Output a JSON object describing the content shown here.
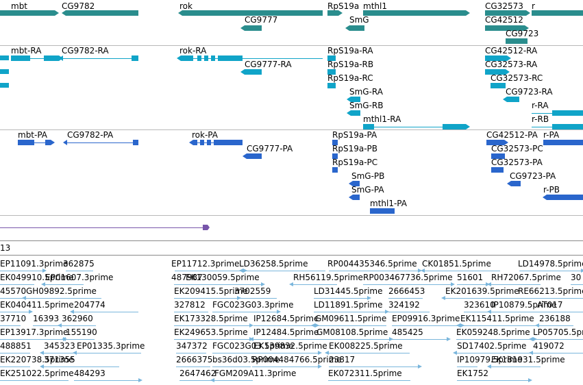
{
  "colors": {
    "gene": "#2a8d8d",
    "transcript": "#10a4c8",
    "polypeptide": "#2a66cc",
    "purple": "#7755aa",
    "est": "#7ab6dc",
    "separator": "#b8b8b8"
  },
  "tracks": {
    "genes": {
      "features": [
        {
          "label": "mbt"
        },
        {
          "label": "CG9782"
        },
        {
          "label": "rok"
        },
        {
          "label": "CG9777"
        },
        {
          "label": "RpS19a"
        },
        {
          "label": "mthl1"
        },
        {
          "label": "SmG"
        },
        {
          "label": "CG32573"
        },
        {
          "label": "r"
        },
        {
          "label": "CG42512"
        },
        {
          "label": "CG9723"
        }
      ]
    },
    "transcripts": {
      "features": [
        {
          "label": "mbt-RA"
        },
        {
          "label": "CG9782-RA"
        },
        {
          "label": "rok-RA"
        },
        {
          "label": "CG9777-RA"
        },
        {
          "label": "RpS19a-RA"
        },
        {
          "label": "RpS19a-RB"
        },
        {
          "label": "RpS19a-RC"
        },
        {
          "label": "SmG-RA"
        },
        {
          "label": "SmG-RB"
        },
        {
          "label": "mthl1-RA"
        },
        {
          "label": "CG42512-RA"
        },
        {
          "label": "CG32573-RA"
        },
        {
          "label": "CG32573-RC"
        },
        {
          "label": "CG9723-RA"
        },
        {
          "label": "r-RA"
        },
        {
          "label": "r-RB"
        }
      ]
    },
    "polypeptides": {
      "features": [
        {
          "label": "mbt-PA"
        },
        {
          "label": "CG9782-PA"
        },
        {
          "label": "rok-PA"
        },
        {
          "label": "CG9777-PA"
        },
        {
          "label": "RpS19a-PA"
        },
        {
          "label": "RpS19a-PB"
        },
        {
          "label": "RpS19a-PC"
        },
        {
          "label": "SmG-PB"
        },
        {
          "label": "SmG-PA"
        },
        {
          "label": "mthl1-PA"
        },
        {
          "label": "CG42512-PA"
        },
        {
          "label": "r-PA"
        },
        {
          "label": "CG32573-PC"
        },
        {
          "label": "CG32573-PA"
        },
        {
          "label": "CG9723-PA"
        },
        {
          "label": "r-PB"
        }
      ]
    },
    "est_track": {
      "title": "13",
      "features": [
        {
          "label": "EP11091.3prime"
        },
        {
          "label": "362875"
        },
        {
          "label": "EP11712.3prime"
        },
        {
          "label": "LD36258.5prime"
        },
        {
          "label": "RP004435346.5prime"
        },
        {
          "label": "CK01851.5prime"
        },
        {
          "label": "LD14978.5prime"
        },
        {
          "label": "EK049910.5prime"
        },
        {
          "label": "EP01607.3prime"
        },
        {
          "label": "487987"
        },
        {
          "label": "EK130059.5prime"
        },
        {
          "label": "RH56119.5prime"
        },
        {
          "label": "RP003467736.5prime"
        },
        {
          "label": "51601"
        },
        {
          "label": "RH72067.5prime"
        },
        {
          "label": "30"
        },
        {
          "label": "45570"
        },
        {
          "label": "GH09892.5prime"
        },
        {
          "label": "EK209415.5prime"
        },
        {
          "label": "3702559"
        },
        {
          "label": "LD31445.5prime"
        },
        {
          "label": "2666453"
        },
        {
          "label": "EK201639.5prime"
        },
        {
          "label": "RE66213.5prime"
        },
        {
          "label": "EK040411.5prime"
        },
        {
          "label": "204774"
        },
        {
          "label": "327812"
        },
        {
          "label": "FGC023G03.3prime"
        },
        {
          "label": "LD11891.5prime"
        },
        {
          "label": "324192"
        },
        {
          "label": "323610"
        },
        {
          "label": "IP10879.5prime"
        },
        {
          "label": "AT017"
        },
        {
          "label": "37710"
        },
        {
          "label": "16393"
        },
        {
          "label": "362960"
        },
        {
          "label": "EK173328.5prime"
        },
        {
          "label": "IP12684.5prime"
        },
        {
          "label": "GM09611.5prime"
        },
        {
          "label": "EP09916.3prime"
        },
        {
          "label": "EK115411.5prime"
        },
        {
          "label": "236188"
        },
        {
          "label": "EP13917.3prime"
        },
        {
          "label": "155190"
        },
        {
          "label": "EK249653.5prime"
        },
        {
          "label": "IP12484.5prime"
        },
        {
          "label": "GM08108.5prime"
        },
        {
          "label": "485425"
        },
        {
          "label": "EK059248.5prime"
        },
        {
          "label": "LP05705.5prime"
        },
        {
          "label": "488851"
        },
        {
          "label": "345323"
        },
        {
          "label": "EP01335.3prime"
        },
        {
          "label": "347372"
        },
        {
          "label": "FGC023G03.5prime"
        },
        {
          "label": "EK139832.5prime"
        },
        {
          "label": "EK008225.5prime"
        },
        {
          "label": "SD17402.5prime"
        },
        {
          "label": "419072"
        },
        {
          "label": "EK220738.5prime"
        },
        {
          "label": "371355"
        },
        {
          "label": "2666375"
        },
        {
          "label": "bs36d03.5prime"
        },
        {
          "label": "RP004484766.5prime"
        },
        {
          "label": "23817"
        },
        {
          "label": "IP10979.5prime"
        },
        {
          "label": "EK181931.5prime"
        },
        {
          "label": "EK251022.5prime"
        },
        {
          "label": "484293"
        },
        {
          "label": "2647462"
        },
        {
          "label": "FGM209A11.3prime"
        },
        {
          "label": "EK072311.5prime"
        },
        {
          "label": "EK1752"
        }
      ]
    }
  }
}
